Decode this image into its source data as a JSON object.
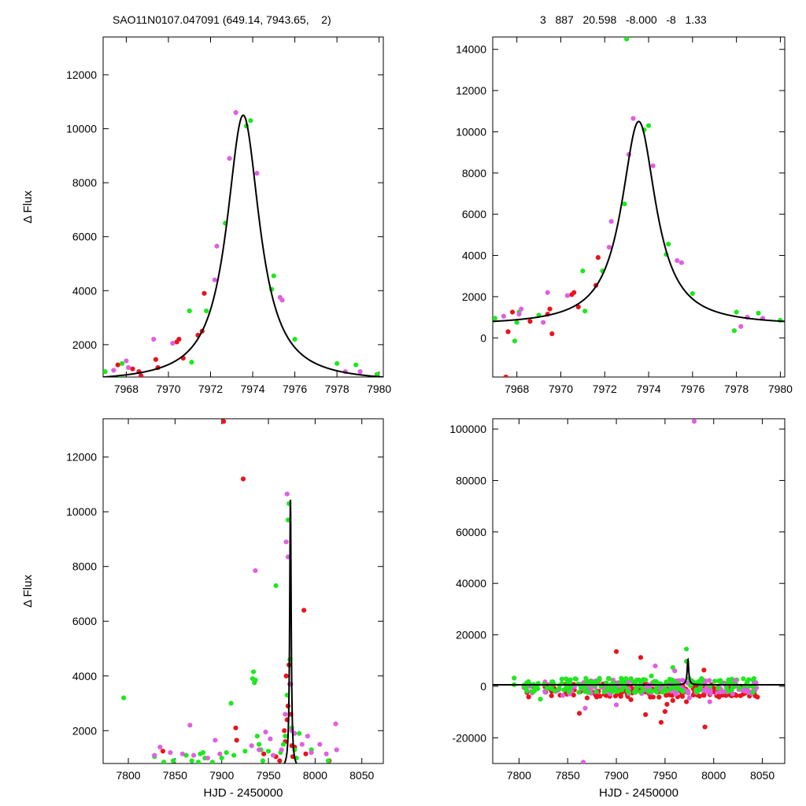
{
  "header": {
    "left": "SAO11N0107.047091 (649.14, 7943.65,    2)",
    "right": "3   887   20.598   -8.000   -8   1.33"
  },
  "colors": {
    "red": "#e8141e",
    "green": "#1ee81e",
    "violet": "#e060e0",
    "model": "#000000"
  },
  "chart_data": [
    {
      "type": "scatter",
      "panel": "top-left",
      "xlabel": "",
      "ylabel": "Δ Flux",
      "xlim": [
        7966.9,
        7980.2
      ],
      "ylim": [
        800,
        13400
      ],
      "xticks": [
        7968,
        7970,
        7972,
        7974,
        7976,
        7978,
        7980
      ],
      "yticks": [
        2000,
        4000,
        6000,
        8000,
        10000,
        12000
      ],
      "model": {
        "shape": "lorentzian",
        "t0": 7973.55,
        "peak": 10500,
        "base": 600,
        "hwhm": 0.95
      },
      "series": [
        {
          "color": "red",
          "points": [
            [
              7967.6,
              1250
            ],
            [
              7968.3,
              1100
            ],
            [
              7968.6,
              1000
            ],
            [
              7968.7,
              850
            ],
            [
              7969.4,
              1450
            ],
            [
              7969.5,
              1150
            ],
            [
              7970.4,
              2100
            ],
            [
              7970.5,
              2200
            ],
            [
              7970.7,
              1500
            ],
            [
              7971.4,
              2350
            ],
            [
              7971.6,
              2500
            ],
            [
              7971.7,
              3900
            ]
          ]
        },
        {
          "color": "green",
          "points": [
            [
              7967.0,
              1000
            ],
            [
              7967.7,
              800
            ],
            [
              7967.8,
              1300
            ],
            [
              7971.0,
              3250
            ],
            [
              7971.1,
              1350
            ],
            [
              7971.8,
              3250
            ],
            [
              7972.7,
              6500
            ],
            [
              7973.7,
              10100
            ],
            [
              7973.9,
              10300
            ],
            [
              7974.9,
              4050
            ],
            [
              7975.0,
              4550
            ],
            [
              7976.0,
              2200
            ],
            [
              7978.0,
              1300
            ],
            [
              7978.9,
              1250
            ],
            [
              7979.9,
              900
            ]
          ]
        },
        {
          "color": "violet",
          "points": [
            [
              7967.4,
              1050
            ],
            [
              7968.0,
              1400
            ],
            [
              7968.1,
              1150
            ],
            [
              7969.3,
              2200
            ],
            [
              7970.2,
              2050
            ],
            [
              7972.2,
              4400
            ],
            [
              7972.3,
              5650
            ],
            [
              7972.9,
              8900
            ],
            [
              7973.2,
              10600
            ],
            [
              7974.2,
              8350
            ],
            [
              7975.3,
              3750
            ],
            [
              7975.4,
              3650
            ],
            [
              7978.4,
              1000
            ],
            [
              7979.1,
              1000
            ]
          ]
        }
      ]
    },
    {
      "type": "scatter",
      "panel": "top-right",
      "xlabel": "",
      "ylabel": "",
      "xlim": [
        7966.9,
        7980.2
      ],
      "ylim": [
        -1900,
        14600
      ],
      "xticks": [
        7968,
        7970,
        7972,
        7974,
        7976,
        7978,
        7980
      ],
      "yticks": [
        0,
        2000,
        4000,
        6000,
        8000,
        10000,
        12000,
        14000
      ],
      "model": {
        "shape": "lorentzian",
        "t0": 7973.55,
        "peak": 10500,
        "base": 600,
        "hwhm": 0.95
      },
      "series": [
        {
          "color": "red",
          "points": [
            [
              7967.5,
              -1900
            ],
            [
              7967.6,
              300
            ],
            [
              7967.8,
              1250
            ],
            [
              7968.6,
              800
            ],
            [
              7969.4,
              1150
            ],
            [
              7969.5,
              1400
            ],
            [
              7969.6,
              200
            ],
            [
              7970.5,
              2100
            ],
            [
              7970.6,
              2200
            ],
            [
              7970.8,
              1500
            ],
            [
              7971.6,
              2550
            ],
            [
              7971.7,
              3900
            ]
          ]
        },
        {
          "color": "green",
          "points": [
            [
              7967.0,
              950
            ],
            [
              7967.9,
              -150
            ],
            [
              7968.0,
              750
            ],
            [
              7968.1,
              1250
            ],
            [
              7969.0,
              1100
            ],
            [
              7971.0,
              3250
            ],
            [
              7971.1,
              1300
            ],
            [
              7971.9,
              3250
            ],
            [
              7972.9,
              6500
            ],
            [
              7973.0,
              14500
            ],
            [
              7973.8,
              10100
            ],
            [
              7974.0,
              10300
            ],
            [
              7974.8,
              4050
            ],
            [
              7974.9,
              4550
            ],
            [
              7976.0,
              2150
            ],
            [
              7977.9,
              350
            ],
            [
              7978.0,
              1250
            ],
            [
              7979.0,
              1200
            ],
            [
              7980.0,
              850
            ]
          ]
        },
        {
          "color": "violet",
          "points": [
            [
              7967.4,
              1050
            ],
            [
              7968.1,
              1150
            ],
            [
              7968.2,
              1400
            ],
            [
              7969.2,
              750
            ],
            [
              7969.4,
              2200
            ],
            [
              7970.3,
              2050
            ],
            [
              7972.2,
              4400
            ],
            [
              7972.3,
              5650
            ],
            [
              7973.1,
              8900
            ],
            [
              7973.3,
              10650
            ],
            [
              7974.2,
              8350
            ],
            [
              7975.3,
              3750
            ],
            [
              7975.5,
              3650
            ],
            [
              7978.2,
              550
            ],
            [
              7978.5,
              1000
            ],
            [
              7979.2,
              950
            ]
          ]
        }
      ]
    },
    {
      "type": "scatter",
      "panel": "bottom-left",
      "xlabel": "HJD - 2450000",
      "ylabel": "Δ Flux",
      "xlim": [
        7773,
        8073
      ],
      "ylim": [
        800,
        13400
      ],
      "xticks": [
        7800,
        7850,
        7900,
        7950,
        8000,
        8050
      ],
      "yticks": [
        2000,
        4000,
        6000,
        8000,
        10000,
        12000
      ],
      "model": {
        "shape": "lorentzian",
        "t0": 7973.55,
        "peak": 10500,
        "base": 600,
        "hwhm": 0.95
      },
      "series": [
        {
          "color": "red",
          "points": [
            [
              7837,
              1250
            ],
            [
              7902,
              13300
            ],
            [
              7915,
              2100
            ],
            [
              7916,
              1650
            ],
            [
              7923,
              11200
            ],
            [
              7945,
              1150
            ],
            [
              7958,
              1050
            ],
            [
              7962,
              900
            ],
            [
              7967,
              2000
            ],
            [
              7968,
              1600
            ],
            [
              7969,
              4000
            ],
            [
              7970,
              2400
            ],
            [
              7971,
              2900
            ],
            [
              7972,
              4400
            ],
            [
              7973,
              3700
            ],
            [
              7974,
              2600
            ],
            [
              7975,
              1450
            ],
            [
              7976,
              1050
            ],
            [
              7978,
              1400
            ],
            [
              7988,
              6400
            ],
            [
              7990,
              1150
            ],
            [
              8015,
              900
            ]
          ]
        },
        {
          "color": "green",
          "points": [
            [
              7795,
              3200
            ],
            [
              7828,
              1050
            ],
            [
              7838,
              850
            ],
            [
              7848,
              900
            ],
            [
              7862,
              1100
            ],
            [
              7868,
              900
            ],
            [
              7875,
              850
            ],
            [
              7877,
              1150
            ],
            [
              7880,
              1200
            ],
            [
              7882,
              1000
            ],
            [
              7890,
              850
            ],
            [
              7900,
              1000
            ],
            [
              7905,
              1200
            ],
            [
              7910,
              3000
            ],
            [
              7913,
              1100
            ],
            [
              7925,
              1250
            ],
            [
              7933,
              3900
            ],
            [
              7934,
              4150
            ],
            [
              7935,
              3750
            ],
            [
              7936,
              3850
            ],
            [
              7938,
              1800
            ],
            [
              7940,
              1500
            ],
            [
              7942,
              1300
            ],
            [
              7944,
              900
            ],
            [
              7950,
              1250
            ],
            [
              7958,
              7300
            ],
            [
              7963,
              1200
            ],
            [
              7966,
              1500
            ],
            [
              7968,
              1800
            ],
            [
              7970,
              3300
            ],
            [
              7971,
              9700
            ],
            [
              7972,
              10300
            ],
            [
              7973,
              4600
            ],
            [
              7975,
              2100
            ],
            [
              7978,
              1300
            ],
            [
              7980,
              1000
            ],
            [
              7983,
              1900
            ],
            [
              7996,
              1300
            ],
            [
              8014,
              900
            ]
          ]
        },
        {
          "color": "violet",
          "points": [
            [
              7828,
              1100
            ],
            [
              7834,
              1400
            ],
            [
              7845,
              1200
            ],
            [
              7858,
              1150
            ],
            [
              7866,
              2200
            ],
            [
              7870,
              1100
            ],
            [
              7885,
              1000
            ],
            [
              7893,
              1650
            ],
            [
              7898,
              1150
            ],
            [
              7932,
              1450
            ],
            [
              7936,
              7850
            ],
            [
              7940,
              1300
            ],
            [
              7947,
              1950
            ],
            [
              7952,
              1700
            ],
            [
              7955,
              1100
            ],
            [
              7964,
              1300
            ],
            [
              7968,
              2600
            ],
            [
              7969,
              8900
            ],
            [
              7970,
              10650
            ],
            [
              7971,
              8350
            ],
            [
              7974,
              3700
            ],
            [
              7975,
              2000
            ],
            [
              7978,
              1900
            ],
            [
              7986,
              1500
            ],
            [
              7992,
              1800
            ],
            [
              7996,
              1200
            ],
            [
              8005,
              1500
            ],
            [
              8012,
              1150
            ],
            [
              8022,
              2250
            ],
            [
              8023,
              1300
            ]
          ]
        }
      ]
    },
    {
      "type": "scatter",
      "panel": "bottom-right",
      "xlabel": "HJD - 2450000",
      "ylabel": "",
      "xlim": [
        7773,
        8073
      ],
      "ylim": [
        -30000,
        104000
      ],
      "xticks": [
        7800,
        7850,
        7900,
        7950,
        8000,
        8050
      ],
      "yticks": [
        -20000,
        0,
        20000,
        40000,
        60000,
        80000,
        100000
      ],
      "model": {
        "shape": "lorentzian",
        "t0": 7973.55,
        "peak": 10500,
        "base": 600,
        "hwhm": 0.95
      },
      "band": {
        "x0": 7805,
        "x1": 8045,
        "noise": [
          -3000,
          2500
        ]
      },
      "series": [
        {
          "color": "red",
          "points": [
            [
              7862,
              -10500
            ],
            [
              7900,
              13500
            ],
            [
              7925,
              11200
            ],
            [
              7930,
              -11000
            ],
            [
              7946,
              -14000
            ],
            [
              7950,
              -9800
            ],
            [
              7952,
              -7000
            ],
            [
              7958,
              -5500
            ],
            [
              7972,
              -6000
            ],
            [
              7990,
              6300
            ],
            [
              7991,
              -15800
            ],
            [
              7990,
              -3500
            ],
            [
              7870,
              -4500
            ],
            [
              7880,
              -3800
            ],
            [
              7915,
              -5200
            ],
            [
              7935,
              -4200
            ],
            [
              8005,
              -3900
            ]
          ]
        },
        {
          "color": "green",
          "points": [
            [
              7795,
              3200
            ],
            [
              7795,
              600
            ],
            [
              7822,
              -5000
            ],
            [
              7905,
              3100
            ],
            [
              7936,
              4000
            ],
            [
              7958,
              7300
            ],
            [
              7972,
              14500
            ],
            [
              7972,
              9700
            ],
            [
              7975,
              3000
            ],
            [
              7985,
              1900
            ],
            [
              7910,
              3000
            ],
            [
              7850,
              2000
            ]
          ]
        },
        {
          "color": "violet",
          "points": [
            [
              7980,
              103000
            ],
            [
              7866,
              -29500
            ],
            [
              7868,
              -8500
            ],
            [
              7940,
              7900
            ],
            [
              7960,
              6000
            ],
            [
              7996,
              -6000
            ],
            [
              8022,
              2300
            ],
            [
              7900,
              -7200
            ],
            [
              7845,
              -3500
            ],
            [
              7975,
              -4500
            ]
          ]
        }
      ]
    }
  ]
}
